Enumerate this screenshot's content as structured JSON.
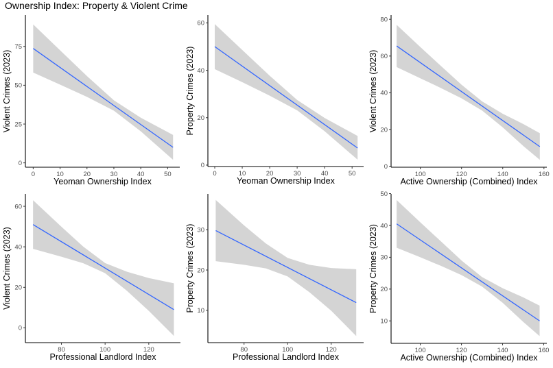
{
  "title": "Ownership Index: Property & Violent Crime",
  "colors": {
    "line": "#3366FF",
    "ribbon": "#d4d4d4",
    "axis": "#000000",
    "tick_text": "#4d4d4d"
  },
  "chart_data": [
    {
      "type": "line",
      "xlabel": "Yeoman Ownership Index",
      "ylabel": "Violent Crimes (2023)",
      "xlim": [
        -2.9,
        54.5
      ],
      "ylim": [
        -2.8,
        95.2
      ],
      "xticks": [
        0,
        10,
        20,
        30,
        40,
        50
      ],
      "yticks": [
        0,
        25,
        50,
        75
      ],
      "grid": false,
      "line": {
        "x": [
          0,
          52
        ],
        "y": [
          73.7,
          10
        ]
      },
      "ribbon": {
        "x": [
          0,
          10,
          20,
          30,
          40,
          52
        ],
        "lower": [
          58.2,
          50.4,
          42.5,
          33.6,
          20.3,
          2
        ],
        "upper": [
          89.2,
          72.5,
          55.9,
          40.3,
          29.1,
          18
        ]
      }
    },
    {
      "type": "line",
      "xlabel": "Yeoman Ownership Index",
      "ylabel": "Property Crimes (2023)",
      "xlim": [
        -2.5,
        54.2
      ],
      "ylim": [
        -0.6,
        63.3
      ],
      "xticks": [
        0,
        10,
        20,
        30,
        40,
        50
      ],
      "yticks": [
        0,
        20,
        40,
        60
      ],
      "grid": false,
      "line": {
        "x": [
          0,
          52
        ],
        "y": [
          50,
          7.2
        ]
      },
      "ribbon": {
        "x": [
          0,
          10,
          20,
          30,
          40,
          52
        ],
        "lower": [
          40.5,
          35.0,
          29.3,
          23.1,
          14.3,
          2.3
        ],
        "upper": [
          59.5,
          48.6,
          37.7,
          27.5,
          19.9,
          12.3
        ]
      }
    },
    {
      "type": "line",
      "xlabel": "Active Ownership (Combined) Index",
      "ylabel": "Violent Crimes (2023)",
      "xlim": [
        85.8,
        161.4
      ],
      "ylim": [
        -0.5,
        82.3
      ],
      "xticks": [
        100,
        120,
        140,
        160
      ],
      "yticks": [
        0,
        20,
        40,
        60,
        80
      ],
      "grid": false,
      "line": {
        "x": [
          88.5,
          158
        ],
        "y": [
          65.5,
          10.7
        ]
      },
      "ribbon": {
        "x": [
          88.5,
          100,
          110,
          120,
          130,
          140,
          150,
          158
        ],
        "lower": [
          54,
          47.9,
          42.6,
          37.0,
          30.3,
          21.2,
          11.0,
          3.5
        ],
        "upper": [
          77,
          64.9,
          54.6,
          44.4,
          35.3,
          28.6,
          23.0,
          18
        ]
      }
    },
    {
      "type": "line",
      "xlabel": "Professional Landlord Index",
      "ylabel": "Violent Crimes (2023)",
      "xlim": [
        63.5,
        134.5
      ],
      "ylim": [
        -7.3,
        66.1
      ],
      "xticks": [
        80,
        100,
        120
      ],
      "yticks": [
        0,
        20,
        40,
        60
      ],
      "grid": false,
      "line": {
        "x": [
          67,
          131.5
        ],
        "y": [
          51,
          9
        ]
      },
      "ribbon": {
        "x": [
          67,
          80,
          90,
          100,
          110,
          120,
          131.5
        ],
        "lower": [
          39,
          35.1,
          31.9,
          27.0,
          18.3,
          8.4,
          -4
        ],
        "upper": [
          63,
          49.9,
          40.1,
          32.0,
          27.7,
          24.6,
          22
        ]
      }
    },
    {
      "type": "line",
      "xlabel": "Professional Landlord Index",
      "ylabel": "Property Crimes (2023)",
      "xlim": [
        63.4,
        134.9
      ],
      "ylim": [
        1.96,
        38.9
      ],
      "xticks": [
        80,
        100,
        120
      ],
      "yticks": [
        10,
        20,
        30
      ],
      "grid": false,
      "line": {
        "x": [
          67,
          131.5
        ],
        "y": [
          29.8,
          11.9
        ]
      },
      "ribbon": {
        "x": [
          67,
          80,
          90,
          100,
          110,
          120,
          131.5
        ],
        "lower": [
          22.2,
          21.3,
          20.4,
          18.4,
          14.5,
          9.9,
          3.6
        ],
        "upper": [
          37.4,
          31.1,
          26.6,
          23.0,
          21.3,
          20.5,
          20.2
        ]
      }
    },
    {
      "type": "line",
      "xlabel": "Active Ownership (Combined) Index",
      "ylabel": "Property Crimes (2023)",
      "xlim": [
        85.8,
        161.5
      ],
      "ylim": [
        2.95,
        49.9
      ],
      "xticks": [
        100,
        120,
        140,
        160
      ],
      "yticks": [
        10,
        20,
        30,
        40,
        50
      ],
      "grid": false,
      "line": {
        "x": [
          88.5,
          158
        ],
        "y": [
          40.5,
          10
        ]
      },
      "ribbon": {
        "x": [
          88.5,
          100,
          110,
          120,
          130,
          140,
          150,
          158
        ],
        "lower": [
          33,
          30.0,
          27.3,
          24.4,
          20.8,
          15.7,
          9.7,
          5.2
        ],
        "upper": [
          48,
          41.0,
          35.0,
          29.0,
          23.8,
          20.3,
          17.4,
          14.8
        ]
      }
    }
  ]
}
